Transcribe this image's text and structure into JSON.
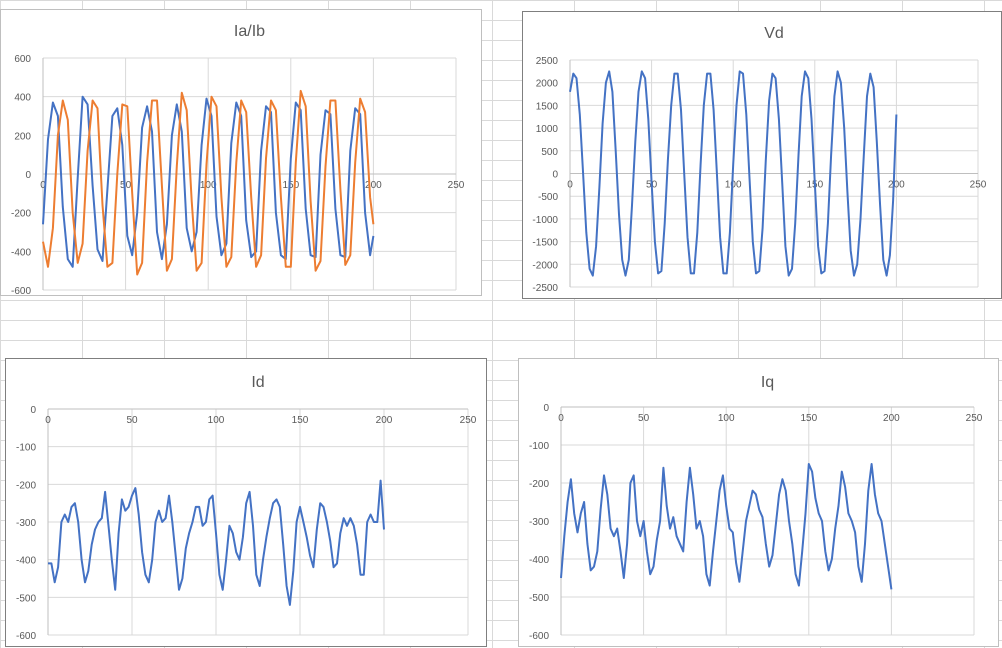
{
  "chart_data": [
    {
      "id": "iaib",
      "type": "line",
      "title": "Ia/Ib",
      "xlabel": "",
      "ylabel": "",
      "xlim": [
        0,
        250
      ],
      "ylim": [
        -600,
        600
      ],
      "x_ticks": [
        0,
        50,
        100,
        150,
        200,
        250
      ],
      "y_ticks": [
        -600,
        -400,
        -200,
        0,
        200,
        400,
        600
      ],
      "x_tick_labels": [
        "0",
        "50",
        "100",
        "150",
        "200",
        "250"
      ],
      "y_tick_labels": [
        "-600",
        "-400",
        "-200",
        "0",
        "200",
        "400",
        "600"
      ],
      "grid": true,
      "series": [
        {
          "color": "#4472C4",
          "x": [
            0,
            3,
            6,
            9,
            12,
            15,
            18,
            21,
            24,
            27,
            30,
            33,
            36,
            39,
            42,
            45,
            48,
            51,
            54,
            57,
            60,
            63,
            66,
            69,
            72,
            75,
            78,
            81,
            84,
            87,
            90,
            93,
            96,
            99,
            102,
            105,
            108,
            111,
            114,
            117,
            120,
            123,
            126,
            129,
            132,
            135,
            138,
            141,
            144,
            147,
            150,
            153,
            156,
            159,
            162,
            165,
            168,
            171,
            174,
            177,
            180,
            183,
            186,
            189,
            192,
            195,
            198,
            200
          ],
          "y": [
            -260,
            180,
            370,
            300,
            -170,
            -440,
            -480,
            -20,
            400,
            360,
            -60,
            -390,
            -450,
            -80,
            300,
            340,
            150,
            -320,
            -420,
            -200,
            240,
            350,
            220,
            -300,
            -440,
            -260,
            200,
            360,
            220,
            -280,
            -400,
            -300,
            150,
            390,
            300,
            -220,
            -420,
            -360,
            160,
            370,
            300,
            -240,
            -430,
            -400,
            120,
            350,
            320,
            -200,
            -420,
            -440,
            80,
            370,
            330,
            -180,
            -420,
            -430,
            100,
            330,
            310,
            -180,
            -420,
            -430,
            120,
            340,
            310,
            -200,
            -420,
            -320
          ]
        },
        {
          "color": "#ED7D31",
          "x": [
            0,
            3,
            6,
            9,
            12,
            15,
            18,
            21,
            24,
            27,
            30,
            33,
            36,
            39,
            42,
            45,
            48,
            51,
            54,
            57,
            60,
            63,
            66,
            69,
            72,
            75,
            78,
            81,
            84,
            87,
            90,
            93,
            96,
            99,
            102,
            105,
            108,
            111,
            114,
            117,
            120,
            123,
            126,
            129,
            132,
            135,
            138,
            141,
            144,
            147,
            150,
            153,
            156,
            159,
            162,
            165,
            168,
            171,
            174,
            177,
            180,
            183,
            186,
            189,
            192,
            195,
            198,
            200
          ],
          "y": [
            -350,
            -480,
            -280,
            200,
            380,
            280,
            -200,
            -460,
            -360,
            120,
            380,
            340,
            -160,
            -480,
            -460,
            0,
            360,
            350,
            -100,
            -520,
            -460,
            60,
            380,
            380,
            -60,
            -500,
            -440,
            40,
            420,
            330,
            -140,
            -500,
            -460,
            50,
            400,
            350,
            -120,
            -480,
            -430,
            60,
            380,
            320,
            -120,
            -480,
            -420,
            80,
            380,
            330,
            -120,
            -480,
            -480,
            60,
            430,
            350,
            -140,
            -500,
            -450,
            40,
            380,
            380,
            -80,
            -470,
            -420,
            60,
            390,
            320,
            -120,
            -260
          ]
        }
      ]
    },
    {
      "id": "vd",
      "type": "line",
      "title": "Vd",
      "xlabel": "",
      "ylabel": "",
      "xlim": [
        0,
        250
      ],
      "ylim": [
        -2500,
        2500
      ],
      "x_ticks": [
        0,
        50,
        100,
        150,
        200,
        250
      ],
      "y_ticks": [
        -2500,
        -2000,
        -1500,
        -1000,
        -500,
        0,
        500,
        1000,
        1500,
        2000,
        2500
      ],
      "x_tick_labels": [
        "0",
        "50",
        "100",
        "150",
        "200",
        "250"
      ],
      "y_tick_labels": [
        "-2500",
        "-2000",
        "-1500",
        "-1000",
        "-500",
        "0",
        "500",
        "1000",
        "1500",
        "2000",
        "2500"
      ],
      "grid": true,
      "series": [
        {
          "color": "#4472C4",
          "x": [
            0,
            2,
            4,
            6,
            8,
            10,
            12,
            14,
            16,
            18,
            20,
            22,
            24,
            26,
            28,
            30,
            32,
            34,
            36,
            38,
            40,
            42,
            44,
            46,
            48,
            50,
            52,
            54,
            56,
            58,
            60,
            62,
            64,
            66,
            68,
            70,
            72,
            74,
            76,
            78,
            80,
            82,
            84,
            86,
            88,
            90,
            92,
            94,
            96,
            98,
            100,
            102,
            104,
            106,
            108,
            110,
            112,
            114,
            116,
            118,
            120,
            122,
            124,
            126,
            128,
            130,
            132,
            134,
            136,
            138,
            140,
            142,
            144,
            146,
            148,
            150,
            152,
            154,
            156,
            158,
            160,
            162,
            164,
            166,
            168,
            170,
            172,
            174,
            176,
            178,
            180,
            182,
            184,
            186,
            188,
            190,
            192,
            194,
            196,
            198,
            200
          ],
          "y": [
            1800,
            2200,
            2100,
            1300,
            0,
            -1300,
            -2100,
            -2250,
            -1600,
            -300,
            1100,
            2000,
            2250,
            1800,
            500,
            -900,
            -1900,
            -2250,
            -1900,
            -700,
            700,
            1800,
            2250,
            2100,
            1200,
            -200,
            -1500,
            -2200,
            -2150,
            -1100,
            300,
            1500,
            2200,
            2200,
            1400,
            0,
            -1400,
            -2200,
            -2200,
            -1300,
            200,
            1500,
            2200,
            2200,
            1400,
            0,
            -1400,
            -2200,
            -2200,
            -1300,
            200,
            1500,
            2250,
            2200,
            1300,
            -100,
            -1500,
            -2200,
            -2150,
            -1200,
            300,
            1600,
            2200,
            2100,
            1200,
            -200,
            -1600,
            -2250,
            -2100,
            -1100,
            400,
            1700,
            2250,
            2100,
            1200,
            -200,
            -1600,
            -2200,
            -2150,
            -1100,
            400,
            1700,
            2250,
            2000,
            1000,
            -400,
            -1700,
            -2250,
            -2000,
            -1000,
            400,
            1700,
            2200,
            1900,
            700,
            -700,
            -1900,
            -2250,
            -1800,
            -600,
            1300
          ]
        }
      ]
    },
    {
      "id": "id",
      "type": "line",
      "title": "Id",
      "xlabel": "",
      "ylabel": "",
      "xlim": [
        0,
        250
      ],
      "ylim": [
        -600,
        0
      ],
      "x_ticks": [
        0,
        50,
        100,
        150,
        200,
        250
      ],
      "y_ticks": [
        -600,
        -500,
        -400,
        -300,
        -200,
        -100,
        0
      ],
      "x_tick_labels": [
        "0",
        "50",
        "100",
        "150",
        "200",
        "250"
      ],
      "y_tick_labels": [
        "-600",
        "-500",
        "-400",
        "-300",
        "-200",
        "-100",
        "0"
      ],
      "grid": true,
      "series": [
        {
          "color": "#4472C4",
          "x": [
            0,
            2,
            4,
            6,
            8,
            10,
            12,
            14,
            16,
            18,
            20,
            22,
            24,
            26,
            28,
            30,
            32,
            34,
            36,
            38,
            40,
            42,
            44,
            46,
            48,
            50,
            52,
            54,
            56,
            58,
            60,
            62,
            64,
            66,
            68,
            70,
            72,
            74,
            76,
            78,
            80,
            82,
            84,
            86,
            88,
            90,
            92,
            94,
            96,
            98,
            100,
            102,
            104,
            106,
            108,
            110,
            112,
            114,
            116,
            118,
            120,
            122,
            124,
            126,
            128,
            130,
            132,
            134,
            136,
            138,
            140,
            142,
            144,
            146,
            148,
            150,
            152,
            154,
            156,
            158,
            160,
            162,
            164,
            166,
            168,
            170,
            172,
            174,
            176,
            178,
            180,
            182,
            184,
            186,
            188,
            190,
            192,
            194,
            196,
            198,
            200
          ],
          "y": [
            -410,
            -410,
            -460,
            -420,
            -300,
            -280,
            -300,
            -260,
            -250,
            -300,
            -400,
            -460,
            -430,
            -360,
            -320,
            -300,
            -290,
            -220,
            -310,
            -400,
            -480,
            -330,
            -240,
            -270,
            -260,
            -230,
            -210,
            -280,
            -380,
            -440,
            -460,
            -400,
            -300,
            -270,
            -300,
            -290,
            -230,
            -300,
            -390,
            -480,
            -450,
            -370,
            -330,
            -300,
            -260,
            -260,
            -310,
            -300,
            -240,
            -230,
            -330,
            -440,
            -480,
            -400,
            -310,
            -330,
            -380,
            -400,
            -340,
            -250,
            -220,
            -310,
            -440,
            -470,
            -400,
            -340,
            -290,
            -250,
            -240,
            -260,
            -360,
            -470,
            -520,
            -430,
            -300,
            -260,
            -300,
            -340,
            -390,
            -420,
            -320,
            -250,
            -260,
            -300,
            -350,
            -420,
            -410,
            -330,
            -290,
            -310,
            -290,
            -310,
            -360,
            -440,
            -440,
            -300,
            -280,
            -300,
            -300,
            -190,
            -320
          ]
        }
      ]
    },
    {
      "id": "iq",
      "type": "line",
      "title": "Iq",
      "xlabel": "",
      "ylabel": "",
      "xlim": [
        0,
        250
      ],
      "ylim": [
        -600,
        0
      ],
      "x_ticks": [
        0,
        50,
        100,
        150,
        200,
        250
      ],
      "y_ticks": [
        -600,
        -500,
        -400,
        -300,
        -200,
        -100,
        0
      ],
      "x_tick_labels": [
        "0",
        "50",
        "100",
        "150",
        "200",
        "250"
      ],
      "y_tick_labels": [
        "-600",
        "-500",
        "-400",
        "-300",
        "-200",
        "-100",
        "0"
      ],
      "grid": true,
      "series": [
        {
          "color": "#4472C4",
          "x": [
            0,
            2,
            4,
            6,
            8,
            10,
            12,
            14,
            16,
            18,
            20,
            22,
            24,
            26,
            28,
            30,
            32,
            34,
            36,
            38,
            40,
            42,
            44,
            46,
            48,
            50,
            52,
            54,
            56,
            58,
            60,
            62,
            64,
            66,
            68,
            70,
            72,
            74,
            76,
            78,
            80,
            82,
            84,
            86,
            88,
            90,
            92,
            94,
            96,
            98,
            100,
            102,
            104,
            106,
            108,
            110,
            112,
            114,
            116,
            118,
            120,
            122,
            124,
            126,
            128,
            130,
            132,
            134,
            136,
            138,
            140,
            142,
            144,
            146,
            148,
            150,
            152,
            154,
            156,
            158,
            160,
            162,
            164,
            166,
            168,
            170,
            172,
            174,
            176,
            178,
            180,
            182,
            184,
            186,
            188,
            190,
            192,
            194,
            196,
            198,
            200
          ],
          "y": [
            -450,
            -340,
            -250,
            -190,
            -280,
            -330,
            -280,
            -250,
            -360,
            -430,
            -420,
            -380,
            -270,
            -180,
            -230,
            -320,
            -340,
            -320,
            -380,
            -450,
            -360,
            -200,
            -180,
            -300,
            -340,
            -300,
            -380,
            -440,
            -420,
            -350,
            -300,
            -160,
            -260,
            -320,
            -290,
            -340,
            -360,
            -380,
            -250,
            -160,
            -230,
            -320,
            -300,
            -340,
            -440,
            -470,
            -380,
            -300,
            -220,
            -180,
            -260,
            -320,
            -330,
            -410,
            -460,
            -380,
            -300,
            -260,
            -220,
            -230,
            -270,
            -290,
            -360,
            -420,
            -390,
            -310,
            -230,
            -190,
            -220,
            -300,
            -360,
            -440,
            -470,
            -380,
            -280,
            -150,
            -170,
            -240,
            -280,
            -300,
            -380,
            -430,
            -400,
            -320,
            -260,
            -170,
            -210,
            -280,
            -300,
            -330,
            -420,
            -460,
            -360,
            -220,
            -150,
            -230,
            -280,
            -300,
            -360,
            -420,
            -480
          ]
        }
      ]
    }
  ]
}
